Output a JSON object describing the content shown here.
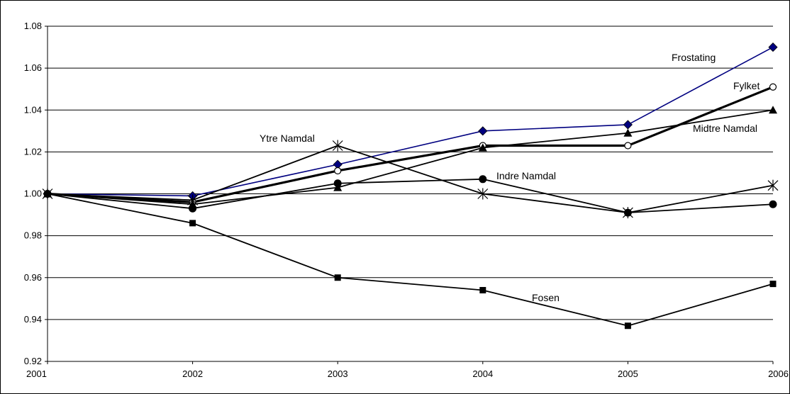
{
  "chart_data": {
    "type": "line",
    "title": "",
    "xlabel": "",
    "ylabel": "",
    "x": [
      "2001",
      "2002",
      "2003",
      "2004",
      "2005",
      "2006"
    ],
    "ylim": [
      0.92,
      1.08
    ],
    "yticks": [
      "0.92",
      "0.94",
      "0.96",
      "0.98",
      "1.00",
      "1.02",
      "1.04",
      "1.06",
      "1.08"
    ],
    "grid": "horizontal",
    "legend": "none (series labelled directly on the lines)",
    "series": [
      {
        "name": "Frostating",
        "values": [
          1.0,
          0.999,
          1.014,
          1.03,
          1.033,
          1.07
        ],
        "color": "#000080",
        "marker": "diamond"
      },
      {
        "name": "Fylket",
        "values": [
          1.0,
          0.996,
          1.011,
          1.023,
          1.023,
          1.051
        ],
        "color": "#000000",
        "marker": "open-circle"
      },
      {
        "name": "Midtre Namdal",
        "values": [
          1.0,
          0.995,
          1.003,
          1.022,
          1.029,
          1.04
        ],
        "color": "#000000",
        "marker": "triangle"
      },
      {
        "name": "Ytre Namdal",
        "values": [
          1.0,
          0.997,
          1.023,
          1.0,
          0.991,
          1.004
        ],
        "color": "#000000",
        "marker": "star"
      },
      {
        "name": "Indre Namdal",
        "values": [
          1.0,
          0.993,
          1.005,
          1.007,
          0.991,
          0.995
        ],
        "color": "#000000",
        "marker": "filled-circle"
      },
      {
        "name": "Fosen",
        "values": [
          1.0,
          0.986,
          0.96,
          0.954,
          0.937,
          0.957
        ],
        "color": "#000000",
        "marker": "square"
      }
    ]
  }
}
